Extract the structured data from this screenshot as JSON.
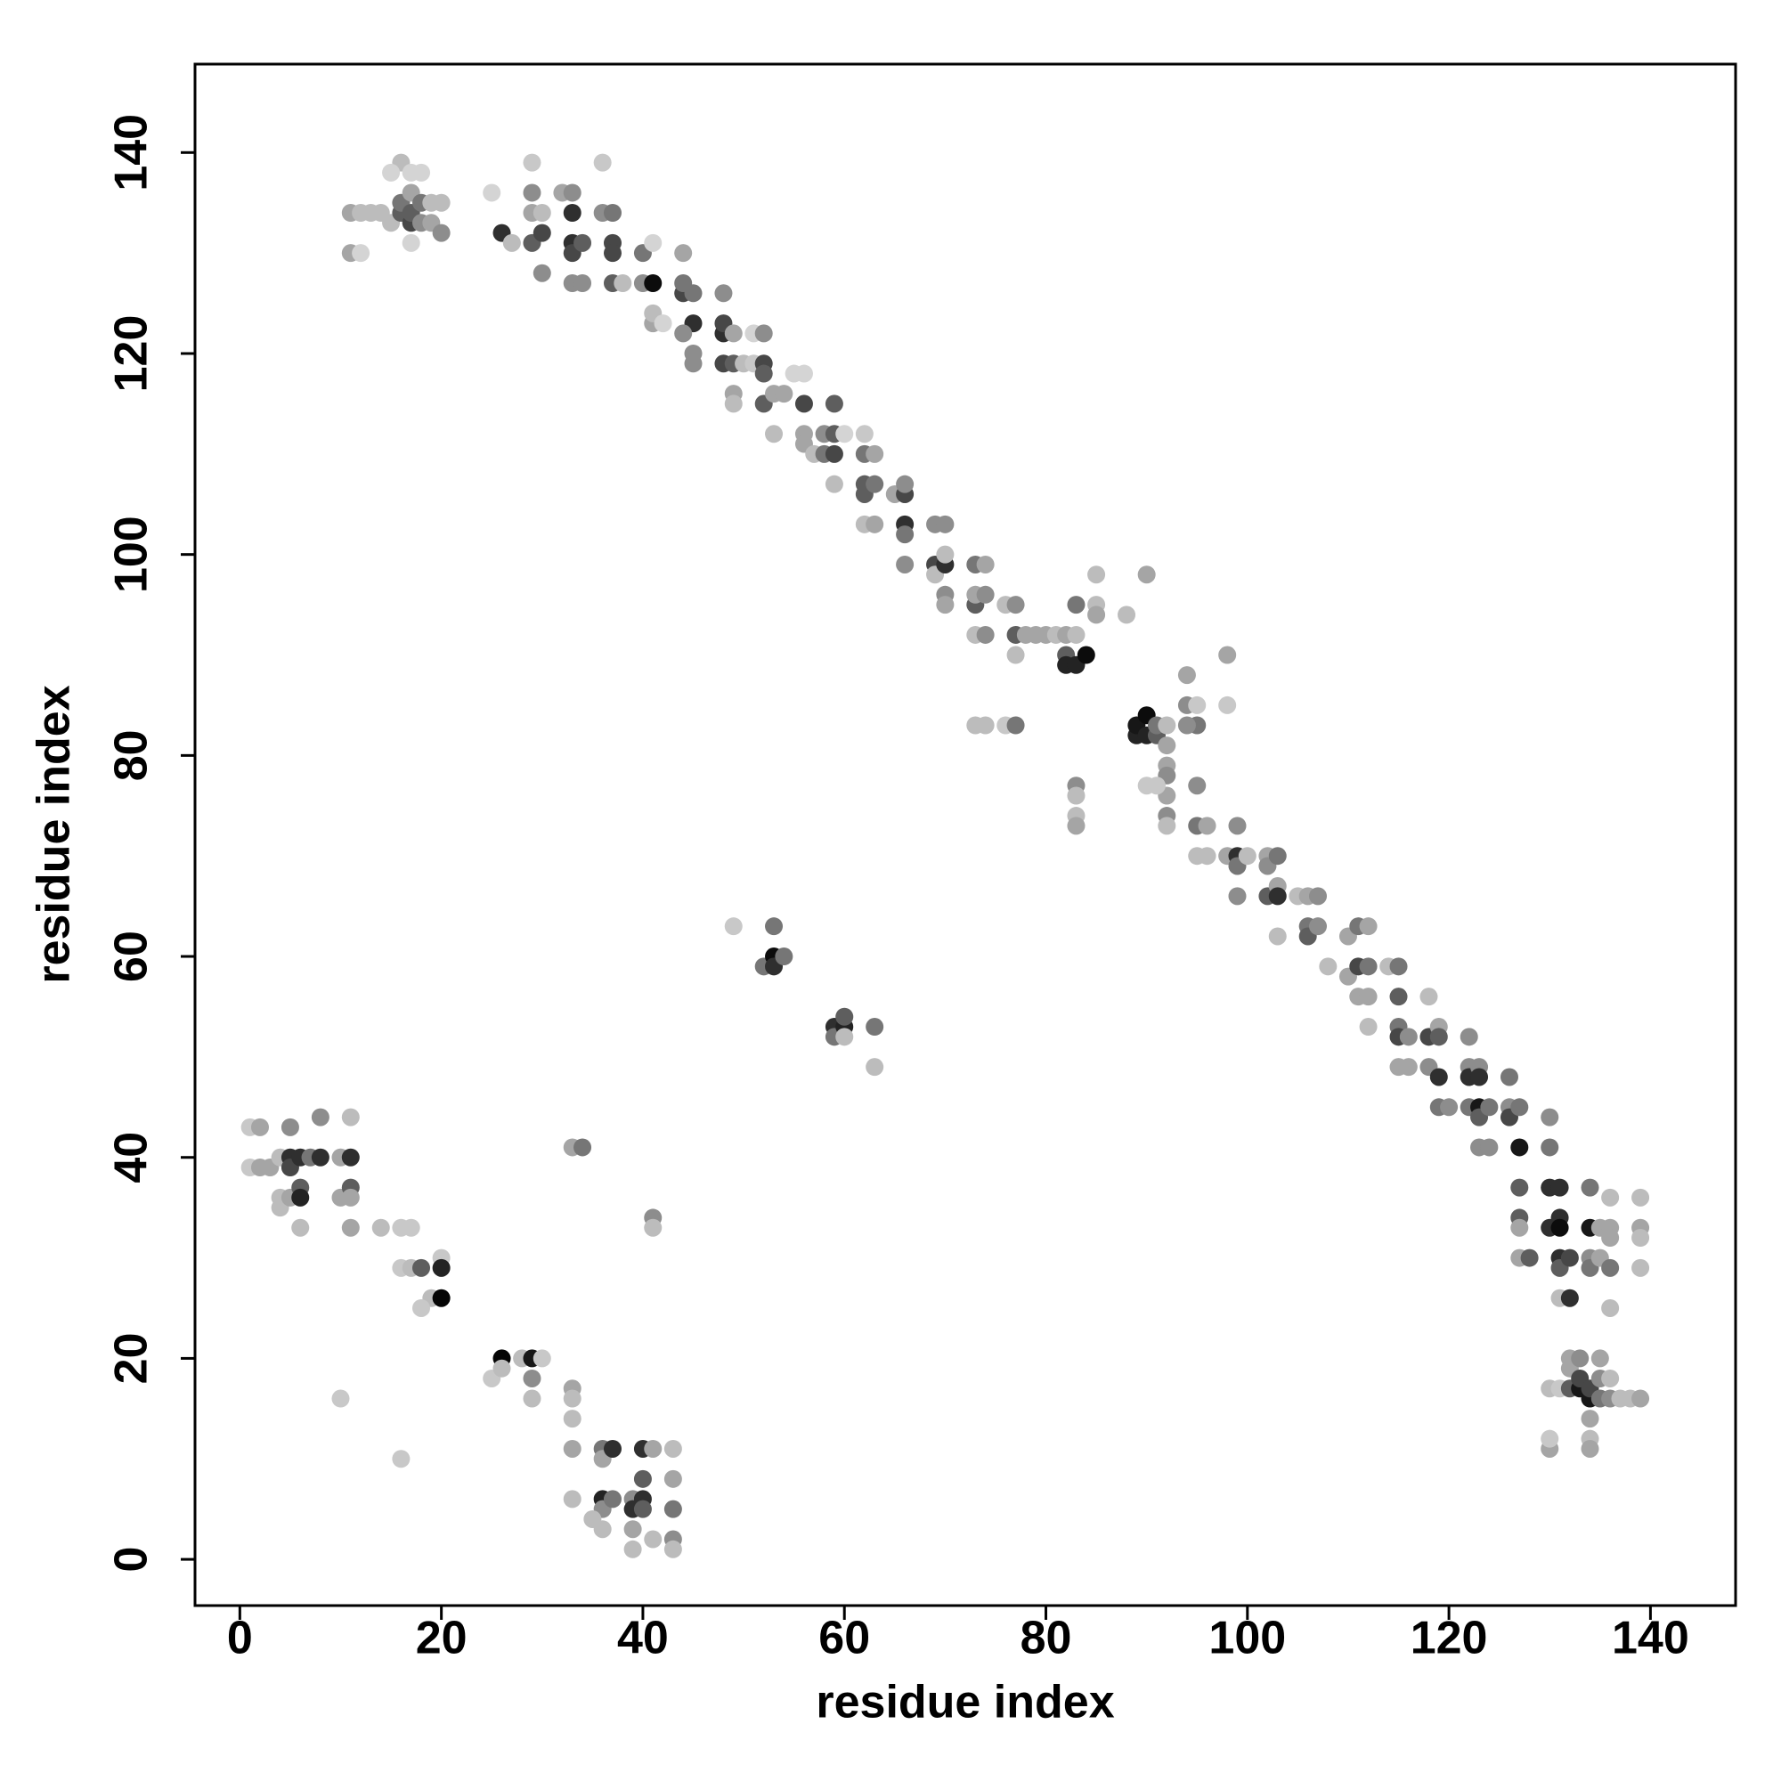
{
  "chart_data": {
    "type": "scatter",
    "xlabel": "residue index",
    "ylabel": "residue index",
    "xlim": [
      -4.45,
      148.45
    ],
    "ylim": [
      -4.6,
      148.8
    ],
    "xticks": [
      0,
      20,
      40,
      60,
      80,
      100,
      120,
      140
    ],
    "yticks": [
      0,
      20,
      40,
      60,
      80,
      100,
      120,
      140
    ],
    "x": [
      11,
      12,
      13,
      14,
      15,
      16,
      16,
      16,
      17,
      17,
      17,
      17,
      18,
      18,
      18,
      19,
      19,
      20,
      20,
      11,
      12,
      15,
      17,
      25,
      26,
      27,
      29,
      29,
      29,
      29,
      30,
      30,
      30,
      32,
      33,
      33,
      33,
      33,
      33,
      34,
      34,
      36,
      36,
      37,
      37,
      37,
      37,
      38,
      40,
      40,
      41,
      41,
      41,
      41,
      42,
      44,
      44,
      44,
      45,
      45,
      45,
      45,
      44,
      48,
      48,
      48,
      48,
      49,
      49,
      49,
      49,
      50,
      51,
      51,
      52,
      52,
      52,
      52,
      53,
      53,
      54,
      55,
      56,
      56,
      56,
      56,
      57,
      58,
      58,
      59,
      59,
      59,
      59,
      60,
      62,
      62,
      62,
      62,
      62,
      63,
      63,
      63,
      65,
      66,
      66,
      66,
      66,
      66,
      69,
      69,
      69,
      70,
      70,
      70,
      70,
      70,
      73,
      73,
      73,
      73,
      74,
      74,
      74,
      76,
      77,
      77,
      77,
      78,
      79,
      80,
      81,
      82,
      82,
      82,
      83,
      83,
      83,
      84,
      85,
      85,
      85,
      88,
      90,
      73,
      74,
      76,
      77,
      83,
      83,
      83,
      83,
      89,
      89,
      90,
      90,
      91,
      91,
      92,
      92,
      92,
      92,
      92,
      90,
      91,
      94,
      94,
      95,
      95,
      94,
      92,
      92,
      95,
      95,
      96,
      95,
      96,
      98,
      98,
      98,
      99,
      99,
      99,
      99,
      100,
      102,
      102,
      102,
      103,
      103,
      103,
      103,
      105,
      106,
      106,
      106,
      107,
      107,
      108,
      110,
      110,
      111,
      111,
      111,
      112,
      112,
      112,
      112,
      114,
      115,
      115,
      115,
      115,
      115,
      116,
      116,
      118,
      118,
      118,
      119,
      119,
      119,
      119,
      120,
      122,
      122,
      122,
      122,
      123,
      123,
      123,
      123,
      123,
      124,
      124,
      126,
      126,
      126,
      127,
      127,
      127,
      127,
      127,
      127,
      128,
      130,
      130,
      130,
      130,
      131,
      131,
      131,
      131,
      131,
      131,
      132,
      132,
      134,
      134,
      134,
      134,
      135,
      135,
      136,
      136,
      136,
      136,
      136,
      139,
      139,
      139,
      139,
      130,
      131,
      132,
      132,
      132,
      133,
      133,
      133,
      134,
      134,
      134,
      134,
      134,
      135,
      135,
      135,
      136,
      136,
      137,
      138,
      139,
      130,
      130,
      1,
      1,
      2,
      2,
      3,
      4,
      4,
      5,
      5,
      5,
      4,
      5,
      6,
      6,
      6,
      6,
      7,
      8,
      8,
      10,
      10,
      11,
      11,
      11,
      11,
      11,
      14,
      16,
      17,
      16,
      17,
      18,
      19,
      18,
      20,
      20,
      20,
      10,
      16,
      25,
      26,
      26,
      28,
      29,
      29,
      29,
      30,
      33,
      33,
      33,
      33,
      33,
      36,
      36,
      37,
      36,
      36,
      37,
      35,
      36,
      39,
      39,
      39,
      39,
      40,
      40,
      40,
      40,
      41,
      41,
      43,
      43,
      43,
      43,
      43,
      33,
      34,
      41,
      41,
      49,
      52,
      53,
      53,
      53,
      54,
      59,
      59,
      60,
      60,
      60,
      63,
      63
    ],
    "values": [
      134,
      134,
      134,
      134,
      133,
      134,
      135,
      139,
      133,
      134,
      136,
      138,
      135,
      133,
      138,
      135,
      133,
      132,
      135,
      130,
      130,
      138,
      131,
      136,
      132,
      131,
      139,
      136,
      134,
      131,
      132,
      128,
      134,
      136,
      136,
      134,
      131,
      130,
      127,
      131,
      127,
      139,
      134,
      134,
      131,
      130,
      127,
      127,
      130,
      127,
      127,
      131,
      123,
      124,
      123,
      130,
      126,
      127,
      126,
      123,
      120,
      119,
      122,
      126,
      122,
      123,
      119,
      122,
      119,
      116,
      115,
      119,
      119,
      122,
      122,
      119,
      118,
      115,
      116,
      112,
      116,
      118,
      118,
      115,
      112,
      111,
      110,
      112,
      110,
      115,
      112,
      110,
      107,
      112,
      112,
      110,
      107,
      106,
      103,
      110,
      107,
      103,
      106,
      106,
      107,
      103,
      102,
      99,
      103,
      99,
      98,
      103,
      99,
      100,
      96,
      95,
      99,
      95,
      96,
      92,
      99,
      96,
      92,
      95,
      95,
      92,
      90,
      92,
      92,
      92,
      92,
      92,
      90,
      89,
      89,
      92,
      95,
      90,
      95,
      98,
      94,
      94,
      98,
      83,
      83,
      83,
      83,
      77,
      76,
      74,
      73,
      82,
      83,
      84,
      82,
      82,
      83,
      83,
      81,
      79,
      78,
      76,
      77,
      77,
      88,
      85,
      85,
      83,
      83,
      74,
      73,
      77,
      73,
      73,
      70,
      70,
      90,
      85,
      70,
      73,
      70,
      69,
      66,
      70,
      70,
      69,
      66,
      70,
      67,
      66,
      62,
      66,
      66,
      63,
      62,
      66,
      63,
      59,
      62,
      58,
      63,
      59,
      56,
      63,
      59,
      56,
      53,
      59,
      59,
      56,
      53,
      52,
      49,
      52,
      49,
      56,
      52,
      49,
      53,
      52,
      48,
      45,
      45,
      52,
      49,
      48,
      45,
      49,
      48,
      45,
      44,
      41,
      45,
      41,
      48,
      45,
      44,
      45,
      41,
      37,
      34,
      33,
      30,
      30,
      44,
      41,
      37,
      33,
      37,
      34,
      33,
      30,
      29,
      26,
      30,
      26,
      37,
      33,
      30,
      29,
      33,
      30,
      36,
      33,
      32,
      29,
      25,
      36,
      33,
      32,
      29,
      17,
      17,
      19,
      17,
      20,
      17,
      18,
      20,
      16,
      17,
      14,
      12,
      11,
      18,
      20,
      16,
      16,
      18,
      16,
      16,
      16,
      11,
      12,
      43,
      39,
      43,
      39,
      39,
      40,
      36,
      43,
      40,
      39,
      35,
      36,
      40,
      37,
      36,
      33,
      40,
      44,
      40,
      40,
      36,
      44,
      40,
      37,
      36,
      33,
      33,
      33,
      33,
      29,
      29,
      29,
      26,
      25,
      30,
      29,
      26,
      16,
      10,
      18,
      20,
      19,
      20,
      20,
      18,
      16,
      20,
      17,
      16,
      14,
      11,
      6,
      11,
      10,
      11,
      6,
      5,
      6,
      4,
      3,
      6,
      5,
      3,
      1,
      11,
      8,
      6,
      5,
      11,
      2,
      11,
      8,
      5,
      2,
      1,
      41,
      41,
      34,
      33,
      63,
      59,
      63,
      60,
      59,
      60,
      53,
      52,
      53,
      54,
      52,
      53,
      49
    ],
    "shade": [
      0.3,
      0.2,
      0.2,
      0.2,
      0.2,
      0.6,
      0.5,
      0.2,
      0.7,
      0.6,
      0.3,
      0.1,
      0.5,
      0.4,
      0.1,
      0.2,
      0.3,
      0.4,
      0.2,
      0.3,
      0.1,
      0.1,
      0.1,
      0.1,
      0.8,
      0.2,
      0.15,
      0.4,
      0.3,
      0.6,
      0.7,
      0.4,
      0.2,
      0.3,
      0.4,
      0.8,
      0.8,
      0.7,
      0.4,
      0.6,
      0.4,
      0.15,
      0.4,
      0.5,
      0.7,
      0.7,
      0.6,
      0.2,
      0.5,
      0.4,
      0.95,
      0.1,
      0.3,
      0.2,
      0.1,
      0.3,
      0.7,
      0.5,
      0.5,
      0.8,
      0.4,
      0.4,
      0.4,
      0.4,
      0.8,
      0.7,
      0.7,
      0.3,
      0.6,
      0.3,
      0.2,
      0.2,
      0.15,
      0.1,
      0.4,
      0.7,
      0.6,
      0.6,
      0.3,
      0.2,
      0.3,
      0.1,
      0.1,
      0.7,
      0.3,
      0.3,
      0.2,
      0.4,
      0.5,
      0.6,
      0.6,
      0.7,
      0.2,
      0.1,
      0.15,
      0.5,
      0.6,
      0.6,
      0.2,
      0.3,
      0.5,
      0.3,
      0.3,
      0.7,
      0.4,
      0.8,
      0.5,
      0.4,
      0.4,
      0.7,
      0.2,
      0.4,
      0.8,
      0.2,
      0.4,
      0.3,
      0.5,
      0.6,
      0.3,
      0.2,
      0.3,
      0.4,
      0.4,
      0.2,
      0.4,
      0.6,
      0.2,
      0.3,
      0.3,
      0.3,
      0.2,
      0.3,
      0.6,
      0.85,
      0.85,
      0.2,
      0.5,
      0.95,
      0.2,
      0.2,
      0.3,
      0.2,
      0.3,
      0.2,
      0.2,
      0.15,
      0.5,
      0.4,
      0.2,
      0.2,
      0.3,
      0.85,
      0.9,
      0.95,
      0.85,
      0.6,
      0.5,
      0.2,
      0.3,
      0.3,
      0.4,
      0.3,
      0.15,
      0.15,
      0.3,
      0.4,
      0.15,
      0.5,
      0.4,
      0.4,
      0.2,
      0.4,
      0.5,
      0.3,
      0.2,
      0.2,
      0.3,
      0.15,
      0.3,
      0.4,
      0.8,
      0.5,
      0.4,
      0.2,
      0.3,
      0.4,
      0.6,
      0.5,
      0.3,
      0.8,
      0.2,
      0.2,
      0.3,
      0.5,
      0.6,
      0.4,
      0.4,
      0.2,
      0.3,
      0.3,
      0.5,
      0.7,
      0.3,
      0.3,
      0.5,
      0.3,
      0.2,
      0.2,
      0.5,
      0.6,
      0.5,
      0.7,
      0.3,
      0.4,
      0.3,
      0.2,
      0.7,
      0.4,
      0.3,
      0.6,
      0.8,
      0.5,
      0.4,
      0.4,
      0.4,
      0.8,
      0.5,
      0.4,
      0.8,
      0.9,
      0.6,
      0.4,
      0.5,
      0.4,
      0.5,
      0.4,
      0.7,
      0.5,
      0.9,
      0.6,
      0.6,
      0.3,
      0.3,
      0.6,
      0.4,
      0.5,
      0.8,
      0.8,
      0.8,
      0.8,
      0.95,
      0.8,
      0.6,
      0.2,
      0.7,
      0.8,
      0.5,
      0.9,
      0.4,
      0.5,
      0.3,
      0.3,
      0.2,
      0.3,
      0.3,
      0.5,
      0.2,
      0.2,
      0.3,
      0.2,
      0.2,
      0.2,
      0.15,
      0.3,
      0.6,
      0.3,
      0.9,
      0.7,
      0.4,
      0.9,
      0.7,
      0.3,
      0.2,
      0.3,
      0.4,
      0.3,
      0.5,
      0.4,
      0.2,
      0.2,
      0.2,
      0.3,
      0.3,
      0.15,
      0.15,
      0.15,
      0.3,
      0.3,
      0.3,
      0.2,
      0.2,
      0.4,
      0.8,
      0.7,
      0.2,
      0.3,
      0.8,
      0.6,
      0.85,
      0.2,
      0.5,
      0.4,
      0.8,
      0.3,
      0.3,
      0.2,
      0.8,
      0.6,
      0.3,
      0.3,
      0.2,
      0.15,
      0.15,
      0.15,
      0.2,
      0.6,
      0.2,
      0.15,
      0.15,
      0.85,
      0.98,
      0.15,
      0.15,
      0.15,
      0.98,
      0.2,
      0.2,
      0.9,
      0.4,
      0.2,
      0.15,
      0.3,
      0.2,
      0.2,
      0.3,
      0.2,
      0.5,
      0.3,
      0.8,
      0.85,
      0.4,
      0.5,
      0.2,
      0.2,
      0.4,
      0.8,
      0.3,
      0.2,
      0.8,
      0.6,
      0.8,
      0.6,
      0.3,
      0.2,
      0.2,
      0.3,
      0.5,
      0.4,
      0.2,
      0.3,
      0.5,
      0.4,
      0.2,
      0.15,
      0.5,
      0.5,
      0.95,
      0.8,
      0.5,
      0.8,
      0.5,
      0.85,
      0.6,
      0.2,
      0.5,
      0.2
    ]
  }
}
